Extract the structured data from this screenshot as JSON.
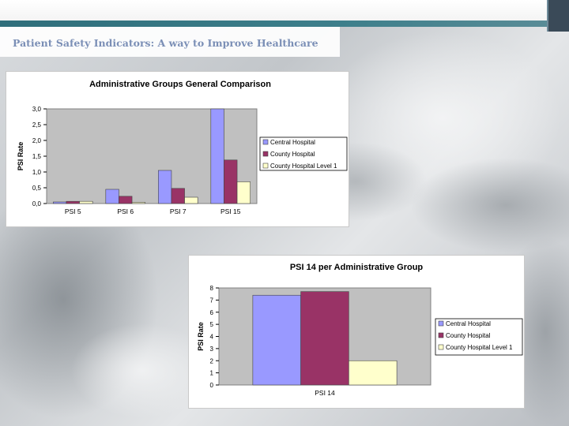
{
  "header": {
    "title": "Patient Safety Indicators: A way to Improve Healthcare"
  },
  "colors": {
    "central": "#9999ff",
    "county": "#993366",
    "level1": "#ffffcc",
    "plot_bg": "#c0c0c0",
    "title_text": "#7b8fb6"
  },
  "chart_data": [
    {
      "type": "bar",
      "title": "Administrative Groups General Comparison",
      "xlabel": "",
      "ylabel": "PSI Rate",
      "categories": [
        "PSI 5",
        "PSI 6",
        "PSI 7",
        "PSI 15"
      ],
      "ylim": [
        0,
        3
      ],
      "yticks": [
        "0,0",
        "0,5",
        "1,0",
        "1,5",
        "2,0",
        "2,5",
        "3,0"
      ],
      "legend_position": "right",
      "grid": false,
      "series": [
        {
          "name": "Central Hospital",
          "values": [
            0.05,
            0.45,
            1.05,
            3.0
          ]
        },
        {
          "name": "County Hospital",
          "values": [
            0.07,
            0.23,
            0.48,
            1.38
          ]
        },
        {
          "name": "County Hospital Level 1",
          "values": [
            0.07,
            0.04,
            0.2,
            0.69
          ]
        }
      ]
    },
    {
      "type": "bar",
      "title": "PSI 14 per Administrative Group",
      "xlabel": "",
      "ylabel": "PSI Rate",
      "categories": [
        "PSI 14"
      ],
      "ylim": [
        0,
        8
      ],
      "yticks": [
        "0",
        "1",
        "2",
        "3",
        "4",
        "5",
        "6",
        "7",
        "8"
      ],
      "legend_position": "right",
      "grid": false,
      "series": [
        {
          "name": "Central Hospital",
          "values": [
            7.4
          ]
        },
        {
          "name": "County Hospital",
          "values": [
            7.7
          ]
        },
        {
          "name": "County Hospital Level 1",
          "values": [
            2.0
          ]
        }
      ]
    }
  ]
}
